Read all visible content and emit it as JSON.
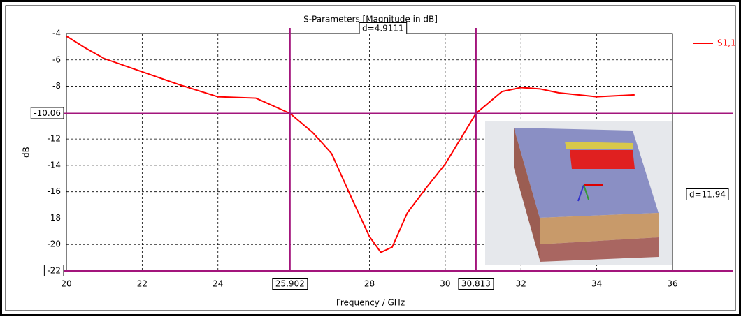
{
  "chart_data": {
    "type": "line",
    "title": "S-Parameters [Magnitude in dB]",
    "x_label": "Frequency / GHz",
    "y_label": "dB",
    "x": [
      20,
      20.5,
      21,
      22,
      23,
      24,
      25,
      25.902,
      26.5,
      27,
      27.5,
      28,
      28.3,
      28.6,
      29,
      29.5,
      30,
      30.813,
      31.5,
      32,
      32.5,
      33,
      34,
      35
    ],
    "series": [
      {
        "name": "S1,1",
        "color": "#ff0000",
        "values": [
          -4.2,
          -5.1,
          -5.9,
          -6.9,
          -7.9,
          -8.8,
          -8.9,
          -10.06,
          -11.5,
          -13.1,
          -16.3,
          -19.4,
          -20.6,
          -20.2,
          -17.6,
          -15.7,
          -13.9,
          -10.06,
          -8.4,
          -8.1,
          -8.2,
          -8.5,
          -8.8,
          -8.65
        ]
      }
    ],
    "xlim": [
      20,
      36
    ],
    "xticks": [
      20,
      22,
      24,
      28,
      30,
      32,
      34,
      36
    ],
    "ylim": [
      -22,
      -4
    ],
    "yticks": [
      -4,
      -6,
      -8,
      -12,
      -14,
      -16,
      -18,
      -20
    ],
    "grid": true,
    "legend": "right",
    "x_markers": [
      25.902,
      30.813
    ],
    "y_markers": [
      -10.06,
      -22
    ],
    "marker_color": "#a3157c",
    "delta_labels": [
      "d=4.9111",
      "d=11.94"
    ]
  }
}
